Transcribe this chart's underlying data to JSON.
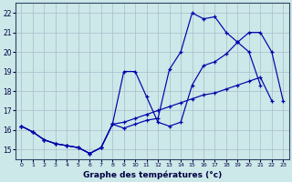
{
  "title": "Graphe des températures (°c)",
  "bg_color": "#cce8e8",
  "grid_color": "#aabbcc",
  "line_color": "#0000aa",
  "xlim": [
    -0.5,
    23.5
  ],
  "ylim": [
    14.5,
    22.5
  ],
  "xticks": [
    0,
    1,
    2,
    3,
    4,
    5,
    6,
    7,
    8,
    9,
    10,
    11,
    12,
    13,
    14,
    15,
    16,
    17,
    18,
    19,
    20,
    21,
    22,
    23
  ],
  "yticks": [
    15,
    16,
    17,
    18,
    19,
    20,
    21,
    22
  ],
  "line1_x": [
    0,
    1,
    2,
    3,
    4,
    5,
    6,
    7,
    8,
    9,
    10,
    11,
    12,
    13,
    14,
    15,
    16,
    17,
    18,
    19,
    20,
    21
  ],
  "line1_y": [
    16.2,
    15.9,
    15.5,
    15.3,
    15.2,
    15.1,
    14.8,
    15.1,
    16.3,
    16.1,
    16.3,
    16.5,
    16.6,
    19.1,
    20.0,
    22.0,
    21.7,
    21.8,
    21.0,
    20.5,
    20.0,
    18.3
  ],
  "line2_x": [
    0,
    1,
    2,
    3,
    4,
    5,
    6,
    7,
    8,
    9,
    10,
    11,
    12,
    13,
    14,
    15,
    16,
    17,
    18,
    19,
    20,
    21,
    22,
    23
  ],
  "line2_y": [
    16.2,
    15.9,
    15.5,
    15.3,
    15.2,
    15.1,
    14.8,
    15.1,
    16.3,
    19.0,
    19.0,
    17.7,
    16.4,
    16.2,
    16.4,
    18.3,
    19.3,
    19.5,
    19.9,
    20.5,
    21.0,
    21.0,
    20.0,
    17.5
  ],
  "line3_x": [
    0,
    1,
    2,
    3,
    4,
    5,
    6,
    7,
    8,
    9,
    10,
    11,
    12,
    13,
    14,
    15,
    16,
    17,
    18,
    19,
    20,
    21,
    22,
    23
  ],
  "line3_y": [
    16.2,
    15.9,
    15.5,
    15.3,
    15.2,
    15.1,
    14.8,
    15.1,
    16.3,
    16.4,
    16.6,
    16.8,
    17.0,
    17.2,
    17.4,
    17.6,
    17.8,
    17.9,
    18.1,
    18.3,
    18.5,
    18.7,
    17.5,
    null
  ]
}
